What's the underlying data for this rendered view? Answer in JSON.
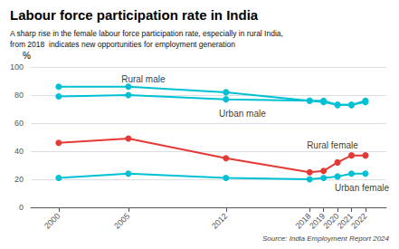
{
  "chart_data": {
    "type": "line",
    "title": "Labour force participation rate in India",
    "subtitle": "A sharp rise in the female labour force participation rate, especially in rural India,\nfrom 2018  indicates new opportunities for employment generation",
    "source": "Source: India Employment Report 2024",
    "y_label": "%",
    "x": [
      2000,
      2005,
      2012,
      2018,
      2019,
      2020,
      2021,
      2022
    ],
    "xlim": [
      1998,
      2023.5
    ],
    "xticks": [
      2000,
      2005,
      2012,
      2018,
      2019,
      2020,
      2021,
      2022
    ],
    "ylim": [
      0,
      100
    ],
    "yticks": [
      0,
      20,
      40,
      60,
      80,
      100
    ],
    "grid": true,
    "marker": "circle",
    "series": [
      {
        "name": "Rural male",
        "color": "#00c0d4",
        "values": [
          86,
          86,
          82,
          76,
          76,
          73,
          73,
          76
        ]
      },
      {
        "name": "Urban male",
        "color": "#00c0d4",
        "values": [
          79,
          80,
          77,
          76,
          75,
          73,
          73,
          75
        ]
      },
      {
        "name": "Rural female",
        "color": "#e53935",
        "values": [
          46,
          49,
          35,
          25,
          26,
          32,
          37,
          37
        ]
      },
      {
        "name": "Urban female",
        "color": "#00c0d4",
        "values": [
          21,
          24,
          21,
          20,
          21,
          22,
          24,
          24
        ]
      }
    ],
    "annotations": [
      {
        "text": "Rural male",
        "x": 2004.5,
        "y": 91
      },
      {
        "text": "Urban male",
        "x": 2011.5,
        "y": 67
      },
      {
        "text": "Rural female",
        "x": 2017.8,
        "y": 44
      },
      {
        "text": "Urban female",
        "x": 2019.8,
        "y": 14
      }
    ]
  }
}
